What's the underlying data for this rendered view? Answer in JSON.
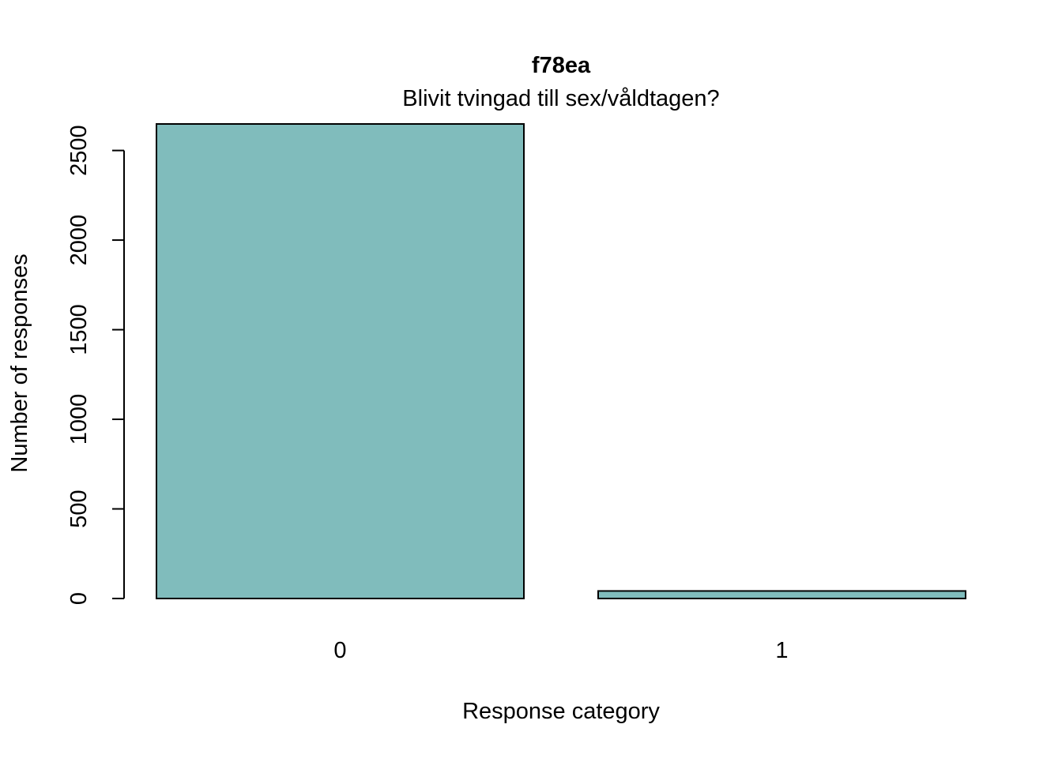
{
  "chart_data": {
    "type": "bar",
    "title": "f78ea",
    "subtitle": "Blivit tvingad till sex/våldtagen?",
    "xlabel": "Response category",
    "ylabel": "Number of responses",
    "categories": [
      "0",
      "1"
    ],
    "values": [
      2648,
      42
    ],
    "ylim": [
      0,
      2648
    ],
    "yticks": [
      0,
      500,
      1000,
      1500,
      2000,
      2500
    ],
    "bar_color": "#80BCBC",
    "grid": false,
    "legend": "none"
  }
}
